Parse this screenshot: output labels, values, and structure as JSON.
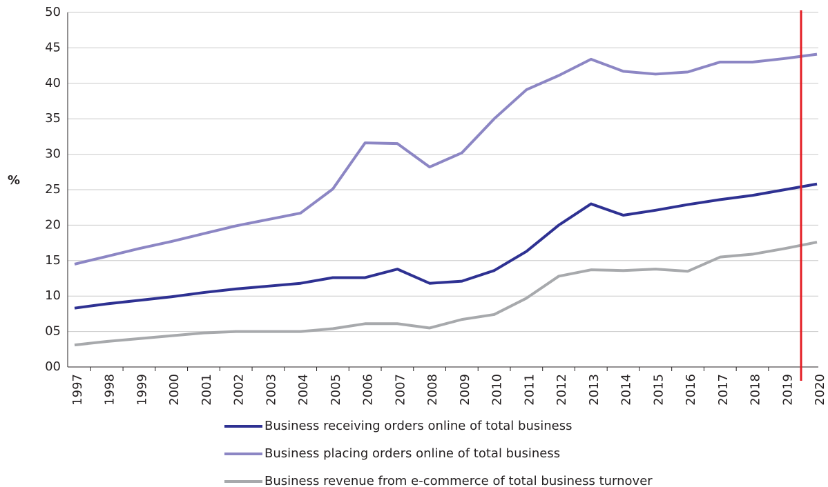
{
  "chart_data": {
    "type": "line",
    "y_label": "%",
    "categories": [
      "1997",
      "1998",
      "1999",
      "2000",
      "2001",
      "2002",
      "2003",
      "2004",
      "2005",
      "2006",
      "2007",
      "2008",
      "2009",
      "2010",
      "2011",
      "2012",
      "2013",
      "2014",
      "2015",
      "2016",
      "2017",
      "2018",
      "2019",
      "2020"
    ],
    "series": [
      {
        "name": "Business receiving orders online of total business",
        "color": "#2e3192",
        "values": [
          8.3,
          8.9,
          9.4,
          9.9,
          10.5,
          11.0,
          11.4,
          11.8,
          12.6,
          12.6,
          13.8,
          11.8,
          12.1,
          13.6,
          16.3,
          20.0,
          23.0,
          21.4,
          22.1,
          22.9,
          23.6,
          24.2,
          25.0,
          25.8
        ]
      },
      {
        "name": "Business placing orders online of total business",
        "color": "#8c86c4",
        "values": [
          14.5,
          15.6,
          16.7,
          17.7,
          18.8,
          19.9,
          20.8,
          21.7,
          25.1,
          31.6,
          31.5,
          28.2,
          30.2,
          35.0,
          39.1,
          41.1,
          43.4,
          41.7,
          41.3,
          41.6,
          43.0,
          43.0,
          43.5,
          44.1
        ]
      },
      {
        "name": "Business revenue from e-commerce of total business turnover",
        "color": "#a7a9ac",
        "values": [
          3.1,
          3.6,
          4.0,
          4.4,
          4.8,
          5.0,
          5.0,
          5.0,
          5.4,
          6.1,
          6.1,
          5.5,
          6.7,
          7.4,
          9.7,
          12.8,
          13.7,
          13.6,
          13.8,
          13.5,
          15.5,
          15.9,
          16.7,
          17.6
        ]
      }
    ],
    "ylim": [
      0,
      50
    ],
    "yticks": [
      {
        "value": 0,
        "label": "00"
      },
      {
        "value": 5,
        "label": "05"
      },
      10,
      15,
      20,
      25,
      30,
      35,
      40,
      45,
      50
    ],
    "grid": true,
    "legend": "bottom"
  }
}
